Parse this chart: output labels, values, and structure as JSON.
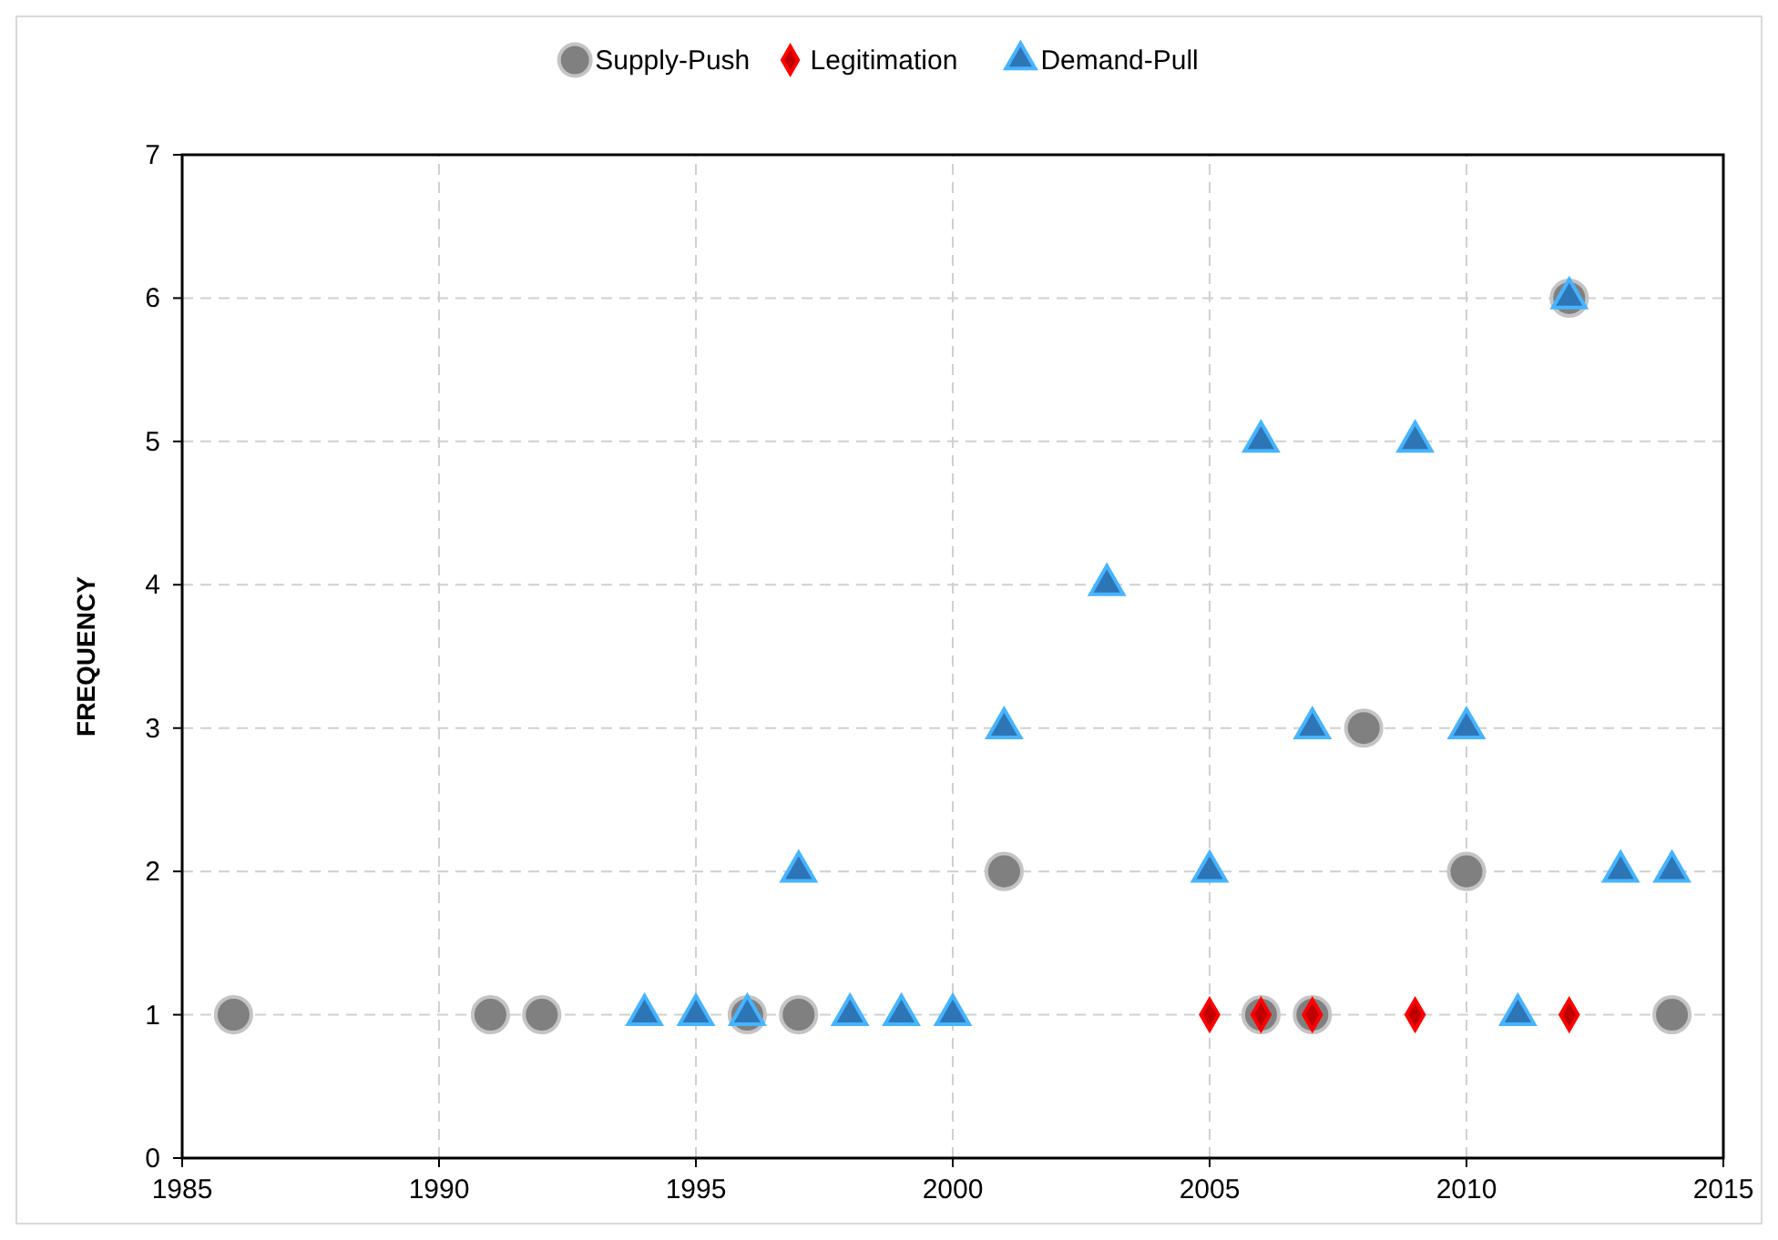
{
  "chart_data": {
    "type": "scatter",
    "ylabel": "FREQUENCY",
    "xlim": [
      1985,
      2015
    ],
    "xticks": [
      1985,
      1990,
      1995,
      2000,
      2005,
      2010,
      2015
    ],
    "ylim": [
      0,
      7
    ],
    "yticks": [
      0,
      1,
      2,
      3,
      4,
      5,
      6,
      7
    ],
    "grid": true,
    "legend": "top",
    "series": [
      {
        "name": "Supply-Push",
        "color": "#808080",
        "marker": "circle",
        "x": [
          1986,
          1991,
          1992,
          1996,
          1997,
          2001,
          2006,
          2007,
          2008,
          2010,
          2012,
          2014
        ],
        "values": [
          1,
          1,
          1,
          1,
          1,
          2,
          1,
          1,
          3,
          2,
          6,
          1
        ]
      },
      {
        "name": "Legitimation",
        "color": "#c00000",
        "marker": "diamond",
        "x": [
          2005,
          2006,
          2007,
          2009,
          2012
        ],
        "values": [
          1,
          1,
          1,
          1,
          1
        ]
      },
      {
        "name": "Demand-Pull",
        "color": "#2e75b6",
        "marker": "triangle",
        "x": [
          1994,
          1995,
          1996,
          1997,
          1998,
          1999,
          2000,
          2001,
          2003,
          2005,
          2006,
          2007,
          2009,
          2010,
          2011,
          2012,
          2013,
          2014
        ],
        "values": [
          1,
          1,
          1,
          2,
          1,
          1,
          1,
          3,
          4,
          2,
          5,
          3,
          5,
          3,
          1,
          6,
          2,
          2
        ]
      }
    ]
  }
}
